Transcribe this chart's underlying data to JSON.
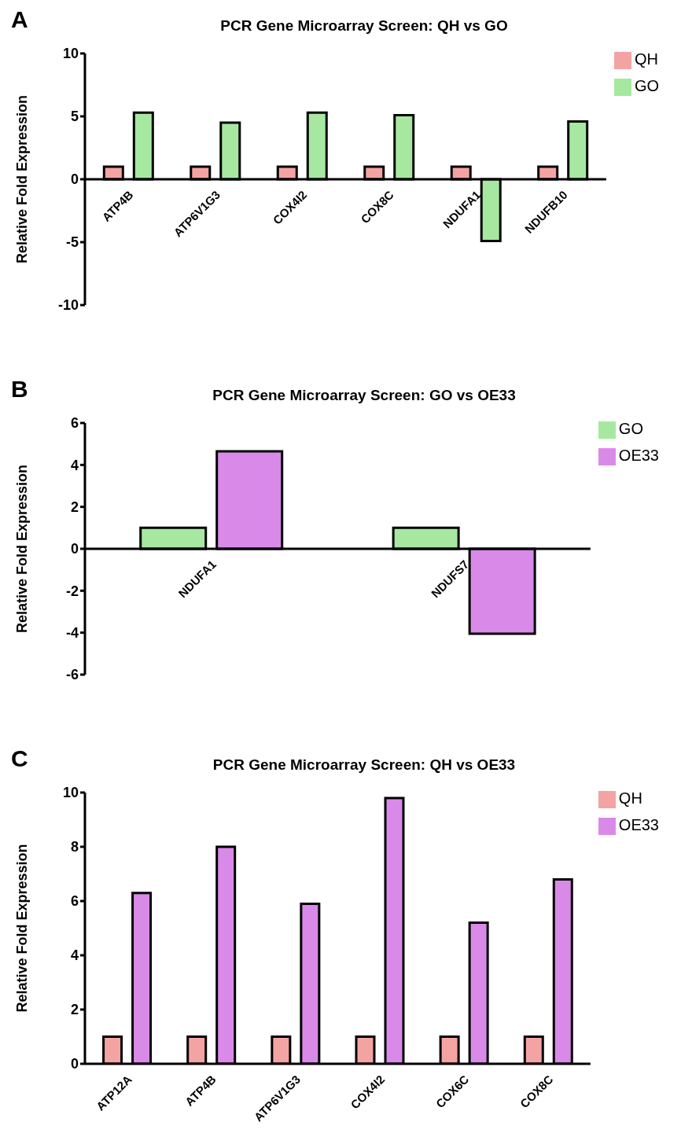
{
  "chart_data": [
    {
      "type": "bar",
      "title": "PCR Gene Microarray Screen: QH vs GO",
      "ylabel": "Relative Fold Expression",
      "annotations": [
        "A"
      ],
      "categories": [
        "ATP4B",
        "ATP6V1G3",
        "COX4I2",
        "COX8C",
        "NDUFA1",
        "NDUFB10"
      ],
      "series": [
        {
          "name": "QH",
          "color": "#f4a3a3",
          "values": [
            1,
            1,
            1,
            1,
            1,
            1
          ]
        },
        {
          "name": "GO",
          "color": "#a6e8a0",
          "values": [
            5.3,
            4.5,
            5.3,
            5.1,
            -4.9,
            4.6
          ]
        }
      ],
      "ylim": [
        -10,
        10
      ],
      "yticks": [
        -10,
        -5,
        0,
        5,
        10
      ],
      "legend": "top right"
    },
    {
      "type": "bar",
      "title": "PCR Gene Microarray Screen: GO vs OE33",
      "ylabel": "Relative Fold Expression",
      "annotations": [
        "B"
      ],
      "categories": [
        "NDUFA1",
        "NDUFS7"
      ],
      "series": [
        {
          "name": "GO",
          "color": "#a6e8a0",
          "values": [
            1,
            1
          ]
        },
        {
          "name": "OE33",
          "color": "#d98ae8",
          "values": [
            4.65,
            -4.05
          ]
        }
      ],
      "ylim": [
        -6,
        6
      ],
      "yticks": [
        -6,
        -4,
        -2,
        0,
        2,
        4,
        6
      ],
      "legend": "top right"
    },
    {
      "type": "bar",
      "title": "PCR Gene Microarray Screen: QH vs OE33",
      "ylabel": "Relative Fold Expression",
      "annotations": [
        "C"
      ],
      "categories": [
        "ATP12A",
        "ATP4B",
        "ATP6V1G3",
        "COX4I2",
        "COX6C",
        "COX8C"
      ],
      "series": [
        {
          "name": "QH",
          "color": "#f4a3a3",
          "values": [
            1,
            1,
            1,
            1,
            1,
            1
          ]
        },
        {
          "name": "OE33",
          "color": "#d98ae8",
          "values": [
            6.3,
            8.0,
            5.9,
            9.8,
            5.2,
            6.8
          ]
        }
      ],
      "ylim": [
        0,
        10
      ],
      "yticks": [
        0,
        2,
        4,
        6,
        8,
        10
      ],
      "legend": "top right"
    }
  ]
}
